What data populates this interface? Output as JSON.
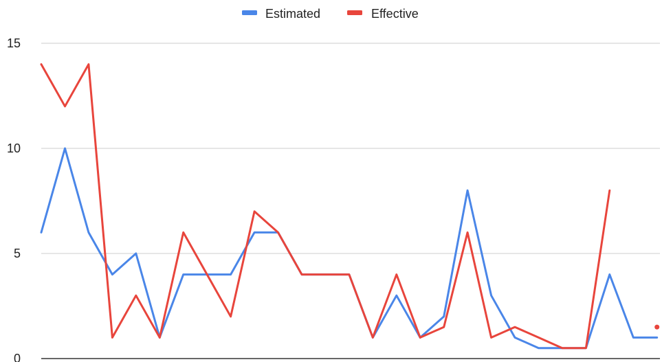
{
  "chart_data": {
    "type": "line",
    "title": "",
    "xlabel": "",
    "ylabel": "",
    "ylim": [
      0,
      15
    ],
    "yticks": [
      "0",
      "5",
      "10",
      "15"
    ],
    "grid": true,
    "legend_position": "top-center",
    "x": [
      1,
      2,
      3,
      4,
      5,
      6,
      7,
      8,
      9,
      10,
      11,
      12,
      13,
      14,
      15,
      16,
      17,
      18,
      19,
      20,
      21,
      22,
      23,
      24,
      25,
      26,
      27,
      28
    ],
    "series": [
      {
        "name": "Estimated",
        "color": "#4a86e8",
        "values": [
          6,
          10,
          6,
          4,
          5,
          1,
          4,
          4,
          4,
          6,
          6,
          4,
          4,
          4,
          1,
          3,
          1,
          2,
          8,
          3,
          1,
          0.5,
          0.5,
          0.5,
          4,
          1,
          1,
          null
        ]
      },
      {
        "name": "Effective",
        "color": "#e8453c",
        "values": [
          14,
          12,
          14,
          1,
          3,
          1,
          6,
          4,
          2,
          7,
          6,
          4,
          4,
          4,
          1,
          4,
          1,
          1.5,
          6,
          1,
          1.5,
          1,
          0.5,
          0.5,
          8,
          null,
          1.5,
          null
        ]
      }
    ]
  }
}
